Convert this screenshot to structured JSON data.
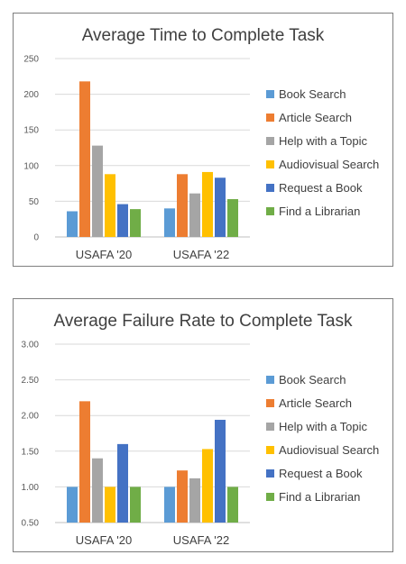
{
  "charts": [
    {
      "chart_data": {
        "type": "bar",
        "title": "Average Time to Complete Task",
        "categories": [
          "USAFA '20",
          "USAFA '22"
        ],
        "ylim": [
          0,
          250
        ],
        "yticks": [
          0,
          50,
          100,
          150,
          200,
          250
        ],
        "ytick_labels": [
          "0",
          "50",
          "100",
          "150",
          "200",
          "250"
        ],
        "grid": true,
        "legend_position": "right",
        "series": [
          {
            "name": "Book Search",
            "color": "#5b9bd5",
            "values": [
              36,
              40
            ]
          },
          {
            "name": "Article Search",
            "color": "#ed7d31",
            "values": [
              218,
              88
            ]
          },
          {
            "name": "Help with a Topic",
            "color": "#a5a5a5",
            "values": [
              128,
              61
            ]
          },
          {
            "name": "Audiovisual Search",
            "color": "#ffc000",
            "values": [
              88,
              91
            ]
          },
          {
            "name": "Request a Book",
            "color": "#4472c4",
            "values": [
              46,
              83
            ]
          },
          {
            "name": "Find a Librarian",
            "color": "#70ad47",
            "values": [
              39,
              53
            ]
          }
        ]
      }
    },
    {
      "chart_data": {
        "type": "bar",
        "title": "Average Failure Rate to Complete Task",
        "categories": [
          "USAFA '20",
          "USAFA '22"
        ],
        "ylim": [
          0.5,
          3.0
        ],
        "yticks": [
          0.5,
          1.0,
          1.5,
          2.0,
          2.5,
          3.0
        ],
        "ytick_labels": [
          "0.50",
          "1.00",
          "1.50",
          "2.00",
          "2.50",
          "3.00"
        ],
        "grid": true,
        "legend_position": "right",
        "series": [
          {
            "name": "Book Search",
            "color": "#5b9bd5",
            "values": [
              1.0,
              1.0
            ]
          },
          {
            "name": "Article Search",
            "color": "#ed7d31",
            "values": [
              2.2,
              1.23
            ]
          },
          {
            "name": "Help with a Topic",
            "color": "#a5a5a5",
            "values": [
              1.4,
              1.12
            ]
          },
          {
            "name": "Audiovisual Search",
            "color": "#ffc000",
            "values": [
              1.0,
              1.53
            ]
          },
          {
            "name": "Request a Book",
            "color": "#4472c4",
            "values": [
              1.6,
              1.94
            ]
          },
          {
            "name": "Find a Librarian",
            "color": "#70ad47",
            "values": [
              1.0,
              1.0
            ]
          }
        ]
      }
    }
  ]
}
